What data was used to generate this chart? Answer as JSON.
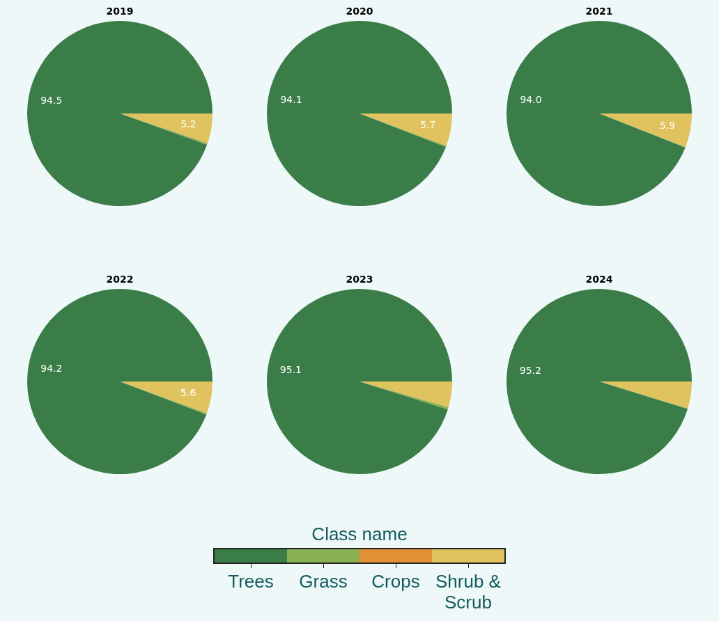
{
  "chart_data": [
    {
      "type": "pie",
      "title": "2019",
      "categories": [
        "Trees",
        "Grass",
        "Crops",
        "Shrub & Scrub"
      ],
      "values": [
        94.5,
        0.3,
        0,
        5.2
      ],
      "value_labels": [
        "94.5",
        null,
        null,
        "5.2"
      ],
      "colors": [
        "#3a7d48",
        "#8ab154",
        "#e29234",
        "#e0c35e"
      ],
      "legend": "bottom",
      "legend_title": "Class name"
    },
    {
      "type": "pie",
      "title": "2020",
      "categories": [
        null,
        null,
        null,
        null
      ],
      "values": [
        94.1,
        0.2,
        0,
        5.7
      ],
      "value_labels": [
        "94.1",
        null,
        null,
        "5.7"
      ],
      "colors": [
        "#3a7d48",
        "#8ab154",
        "#e29234",
        "#e0c35e"
      ]
    },
    {
      "type": "pie",
      "title": "2021",
      "categories": [
        null,
        null,
        null,
        null
      ],
      "values": [
        94.0,
        0.1,
        0,
        5.9
      ],
      "value_labels": [
        "94.0",
        null,
        null,
        "5.9"
      ],
      "colors": [
        "#3a7d48",
        "#8ab154",
        "#e29234",
        "#e0c35e"
      ]
    },
    {
      "type": "pie",
      "title": "2022",
      "categories": [
        null,
        null,
        null,
        null
      ],
      "values": [
        94.2,
        0.2,
        0,
        5.6
      ],
      "value_labels": [
        "94.2",
        null,
        null,
        "5.6"
      ],
      "colors": [
        "#3a7d48",
        "#8ab154",
        "#e29234",
        "#e0c35e"
      ]
    },
    {
      "type": "pie",
      "title": "2023",
      "categories": [
        null,
        null,
        null,
        null
      ],
      "values": [
        95.1,
        0.4,
        0,
        4.5
      ],
      "value_labels": [
        "95.1",
        null,
        null,
        null
      ],
      "colors": [
        "#3a7d48",
        "#8ab154",
        "#e29234",
        "#e0c35e"
      ]
    },
    {
      "type": "pie",
      "title": "2024",
      "categories": [
        null,
        null,
        null,
        null
      ],
      "values": [
        95.2,
        0.1,
        0,
        4.7
      ],
      "value_labels": [
        "95.2",
        null,
        null,
        null
      ],
      "colors": [
        "#3a7d48",
        "#8ab154",
        "#e29234",
        "#e0c35e"
      ]
    }
  ]
}
